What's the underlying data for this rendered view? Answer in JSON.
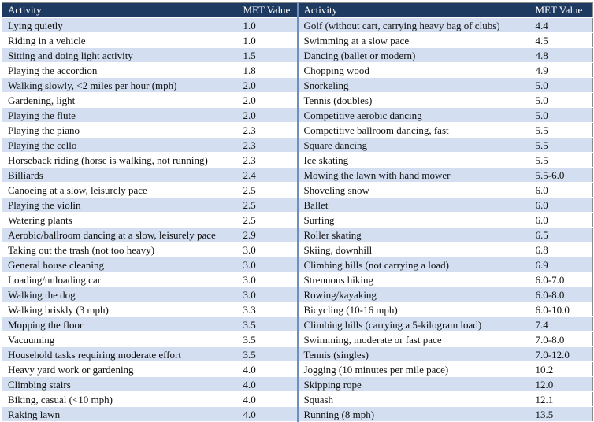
{
  "headers": {
    "activity_left": "Activity",
    "met_left": "MET Value",
    "activity_right": "Activity",
    "met_right": "MET Value"
  },
  "rows": [
    {
      "left_activity": "Lying quietly",
      "left_met": "1.0",
      "right_activity": "Golf (without cart, carrying heavy bag of clubs)",
      "right_met": "4.4"
    },
    {
      "left_activity": "Riding in a vehicle",
      "left_met": "1.0",
      "right_activity": "Swimming at a slow pace",
      "right_met": "4.5"
    },
    {
      "left_activity": "Sitting and doing light activity",
      "left_met": "1.5",
      "right_activity": "Dancing (ballet or modern)",
      "right_met": "4.8"
    },
    {
      "left_activity": "Playing the accordion",
      "left_met": "1.8",
      "right_activity": "Chopping wood",
      "right_met": "4.9"
    },
    {
      "left_activity": "Walking slowly, <2 miles per hour (mph)",
      "left_met": "2.0",
      "right_activity": "Snorkeling",
      "right_met": "5.0"
    },
    {
      "left_activity": "Gardening, light",
      "left_met": "2.0",
      "right_activity": "Tennis (doubles)",
      "right_met": "5.0"
    },
    {
      "left_activity": "Playing the flute",
      "left_met": "2.0",
      "right_activity": "Competitive aerobic dancing",
      "right_met": "5.0"
    },
    {
      "left_activity": "Playing the piano",
      "left_met": "2.3",
      "right_activity": "Competitive ballroom dancing, fast",
      "right_met": "5.5"
    },
    {
      "left_activity": "Playing the cello",
      "left_met": "2.3",
      "right_activity": "Square dancing",
      "right_met": "5.5"
    },
    {
      "left_activity": "Horseback riding (horse is walking, not running)",
      "left_met": "2.3",
      "right_activity": "Ice skating",
      "right_met": "5.5"
    },
    {
      "left_activity": "Billiards",
      "left_met": "2.4",
      "right_activity": "Mowing the lawn with hand mower",
      "right_met": "5.5-6.0"
    },
    {
      "left_activity": "Canoeing at a slow, leisurely pace",
      "left_met": "2.5",
      "right_activity": "Shoveling snow",
      "right_met": "6.0"
    },
    {
      "left_activity": "Playing the violin",
      "left_met": "2.5",
      "right_activity": "Ballet",
      "right_met": "6.0"
    },
    {
      "left_activity": "Watering plants",
      "left_met": "2.5",
      "right_activity": "Surfing",
      "right_met": "6.0"
    },
    {
      "left_activity": "Aerobic/ballroom dancing at a slow, leisurely pace",
      "left_met": "2.9",
      "right_activity": "Roller skating",
      "right_met": "6.5"
    },
    {
      "left_activity": "Taking out the trash (not too heavy)",
      "left_met": "3.0",
      "right_activity": "Skiing, downhill",
      "right_met": "6.8"
    },
    {
      "left_activity": "General house cleaning",
      "left_met": "3.0",
      "right_activity": "Climbing hills (not carrying a load)",
      "right_met": "6.9"
    },
    {
      "left_activity": "Loading/unloading car",
      "left_met": "3.0",
      "right_activity": "Strenuous hiking",
      "right_met": "6.0-7.0"
    },
    {
      "left_activity": "Walking the dog",
      "left_met": "3.0",
      "right_activity": "Rowing/kayaking",
      "right_met": "6.0-8.0"
    },
    {
      "left_activity": "Walking briskly (3 mph)",
      "left_met": "3.3",
      "right_activity": "Bicycling (10-16 mph)",
      "right_met": "6.0-10.0"
    },
    {
      "left_activity": "Mopping the floor",
      "left_met": "3.5",
      "right_activity": "Climbing hills (carrying a 5-kilogram load)",
      "right_met": "7.4"
    },
    {
      "left_activity": "Vacuuming",
      "left_met": "3.5",
      "right_activity": "Swimming, moderate or fast pace",
      "right_met": "7.0-8.0"
    },
    {
      "left_activity": "Household tasks requiring moderate effort",
      "left_met": "3.5",
      "right_activity": "Tennis (singles)",
      "right_met": "7.0-12.0"
    },
    {
      "left_activity": "Heavy yard work or gardening",
      "left_met": "4.0",
      "right_activity": "Jogging (10 minutes per mile pace)",
      "right_met": "10.2"
    },
    {
      "left_activity": "Climbing stairs",
      "left_met": "4.0",
      "right_activity": "Skipping rope",
      "right_met": "12.0"
    },
    {
      "left_activity": "Biking, casual  (<10 mph)",
      "left_met": "4.0",
      "right_activity": "Squash",
      "right_met": "12.1"
    },
    {
      "left_activity": "Raking lawn",
      "left_met": "4.0",
      "right_activity": "Running (8 mph)",
      "right_met": "13.5"
    }
  ],
  "colors": {
    "header_bg": "#1f3a60",
    "band_bg": "#d3dff0",
    "separator": "#6f8fbf"
  }
}
